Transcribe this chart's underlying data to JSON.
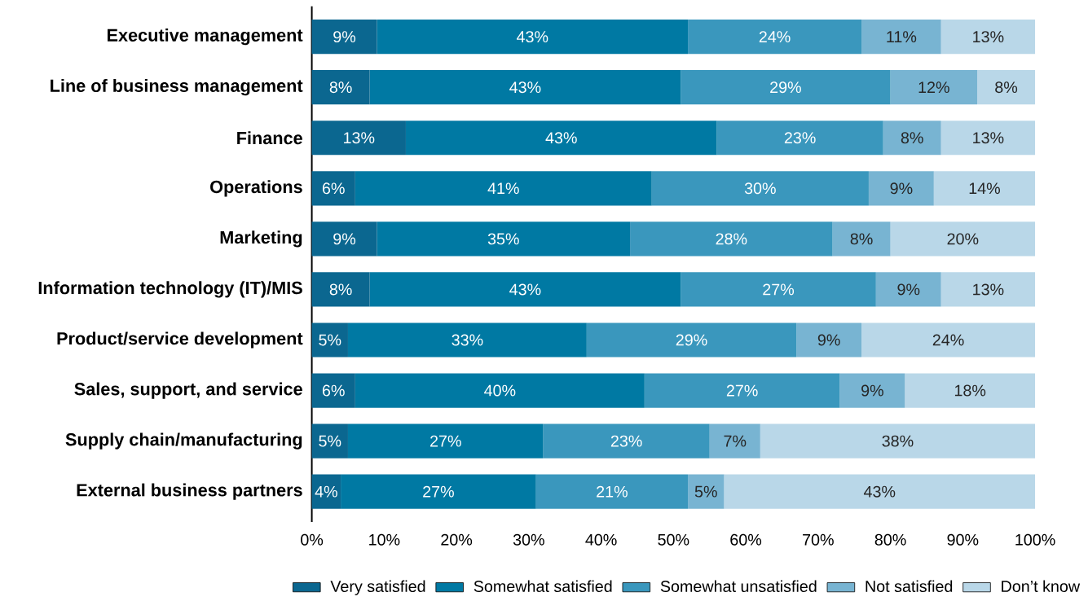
{
  "chart_data": {
    "type": "bar",
    "orientation": "horizontal",
    "stacked": true,
    "categories": [
      "Executive management",
      "Line of business management",
      "Finance",
      "Operations",
      "Marketing",
      "Information technology (IT)/MIS",
      "Product/service development",
      "Sales, support, and service",
      "Supply chain/manufacturing",
      "External business partners"
    ],
    "series": [
      {
        "name": "Very satisfied",
        "color": "#0b6790",
        "values": [
          9,
          8,
          13,
          6,
          9,
          8,
          5,
          6,
          5,
          4
        ],
        "value_labels": [
          "9%",
          "8%",
          "13%",
          "6%",
          "9%",
          "8%",
          "5%",
          "6%",
          "5%",
          "4%"
        ]
      },
      {
        "name": "Somewhat satisfied",
        "color": "#0079a3",
        "values": [
          43,
          43,
          43,
          41,
          35,
          43,
          33,
          40,
          27,
          27
        ],
        "value_labels": [
          "43%",
          "43%",
          "43%",
          "41%",
          "35%",
          "43%",
          "33%",
          "40%",
          "27%",
          "27%"
        ]
      },
      {
        "name": "Somewhat unsatisfied",
        "color": "#3a97bd",
        "values": [
          24,
          29,
          23,
          30,
          28,
          27,
          29,
          27,
          23,
          21
        ],
        "value_labels": [
          "24%",
          "29%",
          "23%",
          "30%",
          "28%",
          "27%",
          "29%",
          "27%",
          "23%",
          "21%"
        ]
      },
      {
        "name": "Not satisfied",
        "color": "#78b4d2",
        "values": [
          11,
          12,
          8,
          9,
          8,
          9,
          9,
          9,
          7,
          5
        ],
        "value_labels": [
          "11%",
          "12%",
          "8%",
          "9%",
          "8%",
          "9%",
          "9%",
          "9%",
          "7%",
          "5%"
        ]
      },
      {
        "name": "Don’t know",
        "color": "#b9d7e8",
        "values": [
          13,
          8,
          13,
          14,
          20,
          13,
          24,
          18,
          38,
          43
        ],
        "value_labels": [
          "13%",
          "8%",
          "13%",
          "14%",
          "20%",
          "13%",
          "24%",
          "18%",
          "38%",
          "43%"
        ]
      }
    ],
    "xlim": [
      0,
      100
    ],
    "xticks": [
      {
        "value": 0,
        "label": "0%"
      },
      {
        "value": 10,
        "label": "10%"
      },
      {
        "value": 20,
        "label": "20%"
      },
      {
        "value": 30,
        "label": "30%"
      },
      {
        "value": 40,
        "label": "40%"
      },
      {
        "value": 50,
        "label": "50%"
      },
      {
        "value": 60,
        "label": "60%"
      },
      {
        "value": 70,
        "label": "70%"
      },
      {
        "value": 80,
        "label": "80%"
      },
      {
        "value": 90,
        "label": "90%"
      },
      {
        "value": 100,
        "label": "100%"
      }
    ],
    "grid": false,
    "legend": "bottom"
  }
}
